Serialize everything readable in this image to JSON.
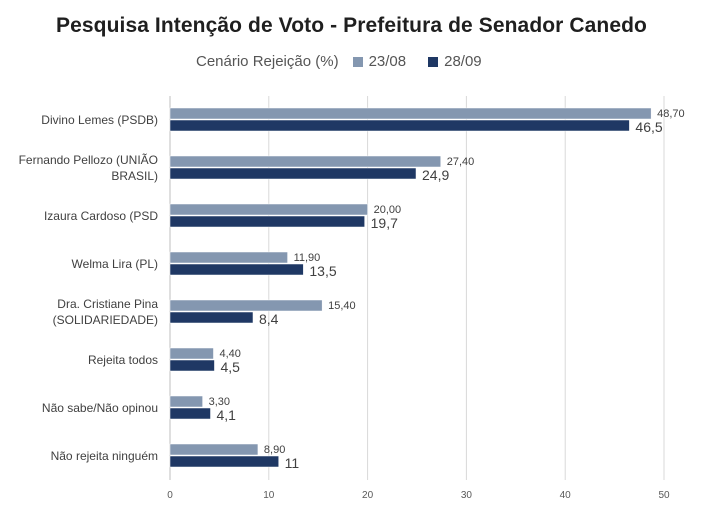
{
  "chart_data": {
    "type": "bar",
    "orientation": "horizontal",
    "title": "Pesquisa Intenção de Voto - Prefeitura de Senador Canedo",
    "subtitle": "Cenário Rejeição (%)",
    "categories": [
      [
        "Divino Lemes (PSDB)"
      ],
      [
        "Fernando Pellozo (UNIÃO",
        "BRASIL)"
      ],
      [
        "Izaura Cardoso (PSD"
      ],
      [
        "Welma Lira (PL)"
      ],
      [
        "Dra. Cristiane Pina",
        "(SOLIDARIEDADE)"
      ],
      [
        "Rejeita todos"
      ],
      [
        "Não sabe/Não opinou"
      ],
      [
        "Não rejeita ninguém"
      ]
    ],
    "series": [
      {
        "name": "23/08",
        "color": "#8497b0",
        "values": [
          48.7,
          27.4,
          20.0,
          11.9,
          15.4,
          4.4,
          3.3,
          8.9
        ],
        "labels": [
          "48,70",
          "27,40",
          "20,00",
          "11,90",
          "15,40",
          "4,40",
          "3,30",
          "8,90"
        ]
      },
      {
        "name": "28/09",
        "color": "#1f3864",
        "values": [
          46.5,
          24.9,
          19.7,
          13.5,
          8.4,
          4.5,
          4.1,
          11
        ],
        "labels": [
          "46,5",
          "24,9",
          "19,7",
          "13,5",
          "8,4",
          "4,5",
          "4,1",
          "11"
        ]
      }
    ],
    "xlim": [
      0,
      50
    ],
    "xticks": [
      "0",
      "10",
      "20",
      "30",
      "40",
      "50"
    ],
    "grid": "vertical",
    "legend_position": "top"
  }
}
